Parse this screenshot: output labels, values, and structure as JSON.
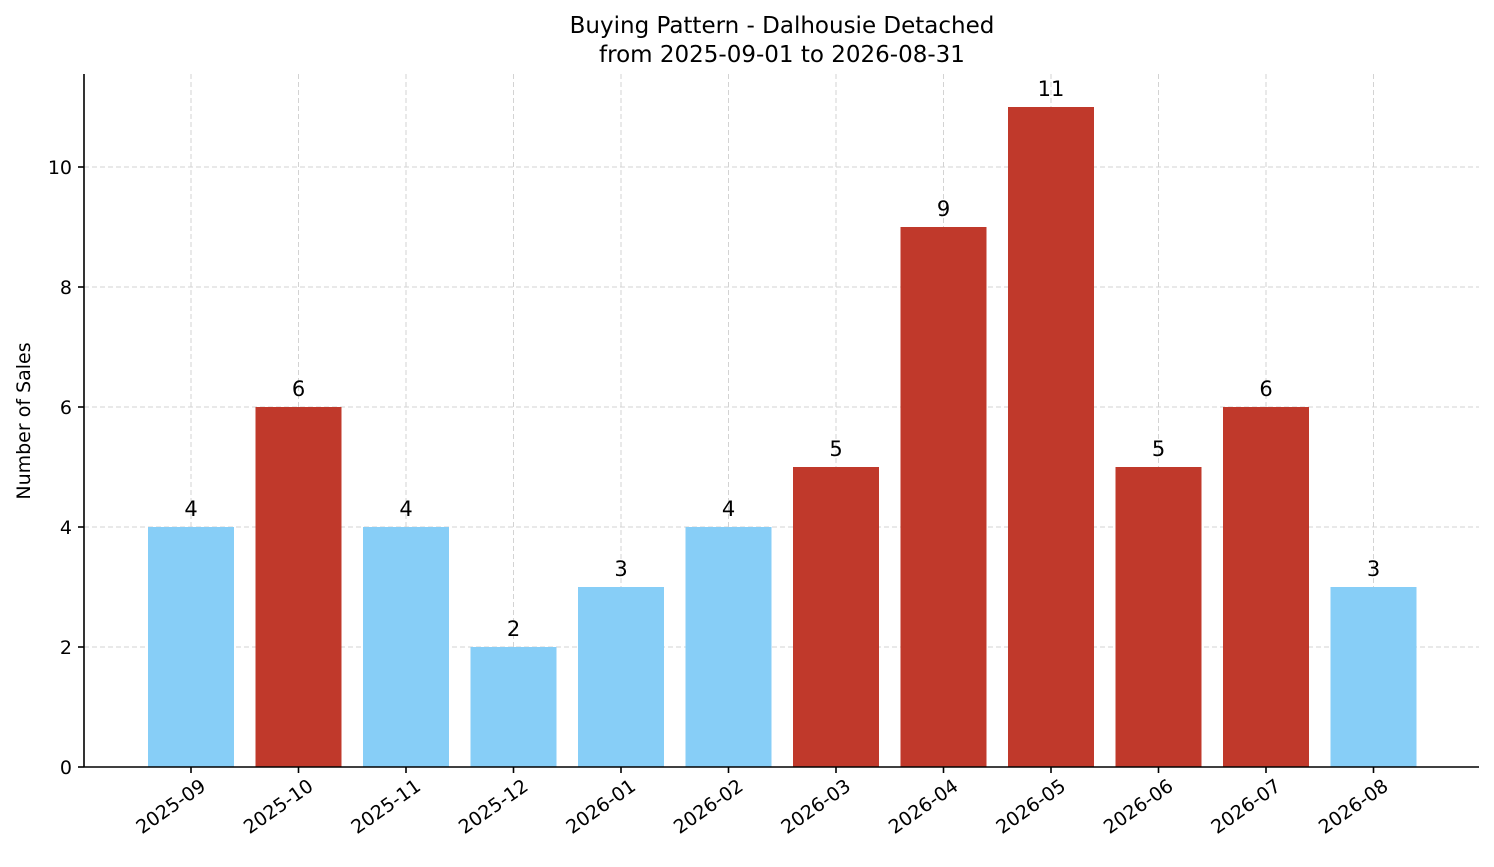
{
  "chart_data": {
    "type": "bar",
    "title": "Buying Pattern - Dalhousie Detached",
    "subtitle": "from 2025-09-01 to 2026-08-31",
    "xlabel": "",
    "ylabel": "Number of Sales",
    "categories": [
      "2025-09",
      "2025-10",
      "2025-11",
      "2025-12",
      "2026-01",
      "2026-02",
      "2026-03",
      "2026-04",
      "2026-05",
      "2026-06",
      "2026-07",
      "2026-08"
    ],
    "values": [
      4,
      6,
      4,
      2,
      3,
      4,
      5,
      9,
      11,
      5,
      6,
      3
    ],
    "bar_colors": [
      "#87CEF7",
      "#C0392B",
      "#87CEF7",
      "#87CEF7",
      "#87CEF7",
      "#87CEF7",
      "#C0392B",
      "#C0392B",
      "#C0392B",
      "#C0392B",
      "#C0392B",
      "#87CEF7"
    ],
    "data_labels": [
      "4",
      "6",
      "4",
      "2",
      "3",
      "4",
      "5",
      "9",
      "11",
      "5",
      "6",
      "3"
    ],
    "ylim": [
      0,
      11.55
    ],
    "yticks": [
      0,
      2,
      4,
      6,
      8,
      10
    ],
    "ytick_labels": [
      "0",
      "2",
      "4",
      "6",
      "8",
      "10"
    ],
    "grid": true,
    "legend": "none",
    "colors": {
      "low": "#87CEF7",
      "high": "#C0392B",
      "grid": "#d3d3d3",
      "axis": "#000000"
    }
  }
}
